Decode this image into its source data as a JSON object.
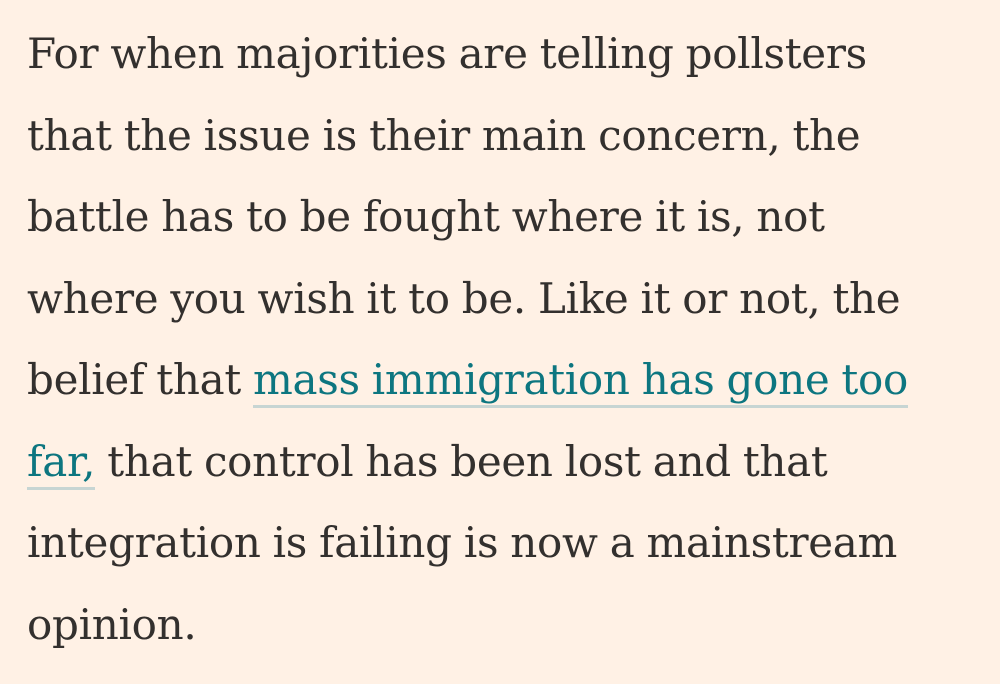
{
  "article": {
    "paragraph": {
      "line1": "For when majorities are telling pollsters",
      "line2": "that the issue is their main concern, the",
      "line3": "battle has to be fought where it is, not",
      "line4": "where you wish it to be. Like it or not, the",
      "line5_prefix": "belief that ",
      "link_text_part1": "mass immigration has gone too",
      "link_text_part2": "far,",
      "line6_suffix": " that control has been lost and that",
      "line7": "integration is failing is now a mainstream",
      "line8": "opinion."
    }
  },
  "colors": {
    "background": "#fff1e5",
    "text": "#33302e",
    "link": "#0d7680",
    "link_underline": "#c7d5d3"
  }
}
